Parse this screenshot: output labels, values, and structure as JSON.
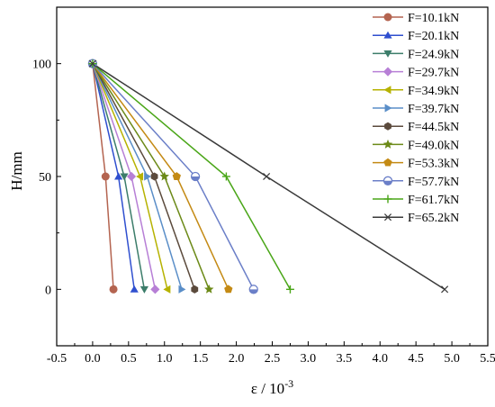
{
  "chart_data": {
    "type": "line",
    "xlabel": "ε / 10",
    "xlabel_exponent": "-3",
    "ylabel": "H/mm",
    "xlim": [
      -0.5,
      5.5
    ],
    "ylim": [
      -25,
      125
    ],
    "x_ticks": [
      -0.5,
      0.0,
      0.5,
      1.0,
      1.5,
      2.0,
      2.5,
      3.0,
      3.5,
      4.0,
      4.5,
      5.0,
      5.5
    ],
    "x_tick_labels": [
      "-0.5",
      "0.0",
      "0.5",
      "1.0",
      "1.5",
      "2.0",
      "2.5",
      "3.0",
      "3.5",
      "4.0",
      "4.5",
      "5.0",
      "5.5"
    ],
    "y_ticks": [
      0,
      50,
      100
    ],
    "y_tick_labels": [
      "0",
      "50",
      "100"
    ],
    "grid": false,
    "legend_position": "top-right",
    "series": [
      {
        "name": "F=10.1kN",
        "color": "#b46450",
        "marker": "circle",
        "points": [
          [
            0.29,
            0
          ],
          [
            0.18,
            50
          ],
          [
            0.0,
            100
          ]
        ]
      },
      {
        "name": "F=20.1kN",
        "color": "#2f4fcf",
        "marker": "triangle-up",
        "points": [
          [
            0.58,
            0
          ],
          [
            0.36,
            50
          ],
          [
            0.0,
            100
          ]
        ]
      },
      {
        "name": "F=24.9kN",
        "color": "#3c7d6a",
        "marker": "triangle-down",
        "points": [
          [
            0.72,
            0
          ],
          [
            0.44,
            50
          ],
          [
            0.0,
            100
          ]
        ]
      },
      {
        "name": "F=29.7kN",
        "color": "#b77fd6",
        "marker": "diamond",
        "points": [
          [
            0.87,
            0
          ],
          [
            0.54,
            50
          ],
          [
            0.0,
            100
          ]
        ]
      },
      {
        "name": "F=34.9kN",
        "color": "#b6b200",
        "marker": "triangle-left",
        "points": [
          [
            1.04,
            0
          ],
          [
            0.66,
            50
          ],
          [
            0.0,
            100
          ]
        ]
      },
      {
        "name": "F=39.7kN",
        "color": "#5a8ec8",
        "marker": "triangle-right",
        "points": [
          [
            1.24,
            0
          ],
          [
            0.76,
            50
          ],
          [
            0.0,
            100
          ]
        ]
      },
      {
        "name": "F=44.5kN",
        "color": "#5b4a3c",
        "marker": "hexagon",
        "points": [
          [
            1.42,
            0
          ],
          [
            0.86,
            50
          ],
          [
            0.0,
            100
          ]
        ]
      },
      {
        "name": "F=49.0kN",
        "color": "#6c8a18",
        "marker": "star",
        "points": [
          [
            1.62,
            0
          ],
          [
            1.0,
            50
          ],
          [
            0.0,
            100
          ]
        ]
      },
      {
        "name": "F=53.3kN",
        "color": "#c48a14",
        "marker": "pentagon",
        "points": [
          [
            1.89,
            0
          ],
          [
            1.17,
            50
          ],
          [
            0.0,
            100
          ]
        ]
      },
      {
        "name": "F=57.7kN",
        "color": "#6b7fc8",
        "marker": "circle-half",
        "points": [
          [
            2.24,
            0
          ],
          [
            1.43,
            50
          ],
          [
            0.0,
            100
          ]
        ]
      },
      {
        "name": "F=61.7kN",
        "color": "#4aa618",
        "marker": "plus",
        "points": [
          [
            2.75,
            0
          ],
          [
            1.86,
            50
          ],
          [
            0.0,
            100
          ]
        ]
      },
      {
        "name": "F=65.2kN",
        "color": "#3a3a3a",
        "marker": "x",
        "points": [
          [
            4.9,
            0
          ],
          [
            2.42,
            50
          ],
          [
            0.0,
            100
          ]
        ]
      }
    ]
  }
}
